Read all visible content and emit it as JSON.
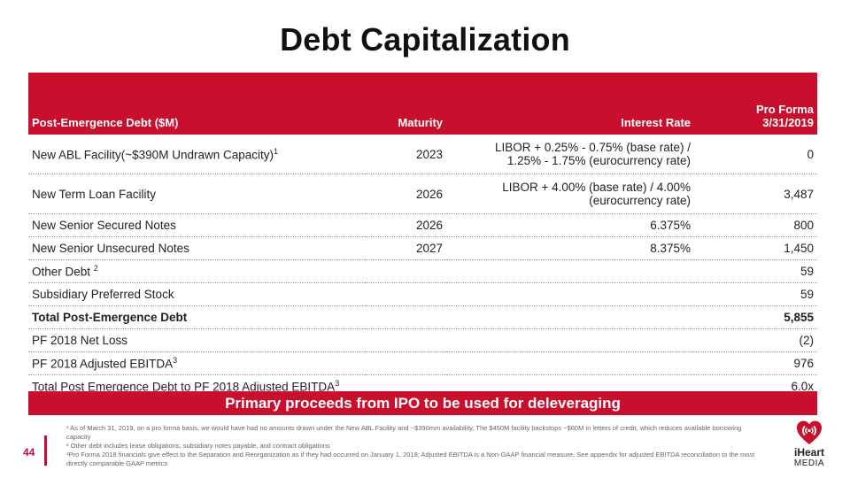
{
  "title": "Debt Capitalization",
  "table": {
    "headers": [
      "Post-Emergence Debt ($M)",
      "Maturity",
      "Interest Rate",
      "Pro Forma",
      "3/31/2019"
    ],
    "rows": [
      {
        "label": "New ABL Facility(~$390M Undrawn Capacity)",
        "sup": "1",
        "maturity": "2023",
        "rate1": "LIBOR + 0.25% - 0.75% (base rate) /",
        "rate2": "1.25% - 1.75% (eurocurrency rate)",
        "value": "0"
      },
      {
        "label": "New Term Loan Facility",
        "sup": "",
        "maturity": "2026",
        "rate1": "LIBOR + 4.00% (base rate) / 4.00%",
        "rate2": "(eurocurrency rate)",
        "value": "3,487"
      },
      {
        "label": "New Senior Secured Notes",
        "sup": "",
        "maturity": "2026",
        "rate1": "6.375%",
        "rate2": "",
        "value": "800"
      },
      {
        "label": "New Senior Unsecured Notes",
        "sup": "",
        "maturity": "2027",
        "rate1": "8.375%",
        "rate2": "",
        "value": "1,450"
      },
      {
        "label": "Other Debt",
        "sup": "2",
        "maturity": "",
        "rate1": "",
        "rate2": "",
        "value": "59"
      },
      {
        "label": "Subsidiary Preferred Stock",
        "sup": "",
        "maturity": "",
        "rate1": "",
        "rate2": "",
        "value": "59"
      },
      {
        "label": "Total Post-Emergence Debt",
        "sup": "",
        "maturity": "",
        "rate1": "",
        "rate2": "",
        "value": "5,855"
      },
      {
        "label": "PF 2018 Net Loss",
        "sup": "",
        "maturity": "",
        "rate1": "",
        "rate2": "",
        "value": "(2)"
      },
      {
        "label": "PF 2018 Adjusted EBITDA",
        "sup": "3",
        "maturity": "",
        "rate1": "",
        "rate2": "",
        "value": "976"
      },
      {
        "label": "Total Post Emergence Debt to PF 2018 Adjusted EBITDA",
        "sup": "3",
        "maturity": "",
        "rate1": "",
        "rate2": "",
        "value": "6.0x"
      }
    ]
  },
  "banner": "Primary proceeds from IPO to be used for deleveraging",
  "footnotes": [
    "¹ As of March 31, 2019, on a pro forma basis, we would have had no amounts drawn under the New ABL Facility and ~$390mm availability. The $450M facility backstops ~$60M in letters of credit, which reduces available borrowing capacity",
    "² Other debt includes lease obligations, subsidiary notes payable, and contract obligations",
    "³Pro Forma 2018 financials give effect to the Separation and Reorganization as if they had occurred on January 1, 2018; Adjusted EBITDA is a Non-GAAP financial measure. See appendix for adjusted EBITDA reconciliation to the most directly comparable GAAP metrics"
  ],
  "page_number": "44",
  "logo": {
    "line1": "iHeart",
    "line2": "MEDIA"
  },
  "colors": {
    "accent": "#c8102e"
  }
}
